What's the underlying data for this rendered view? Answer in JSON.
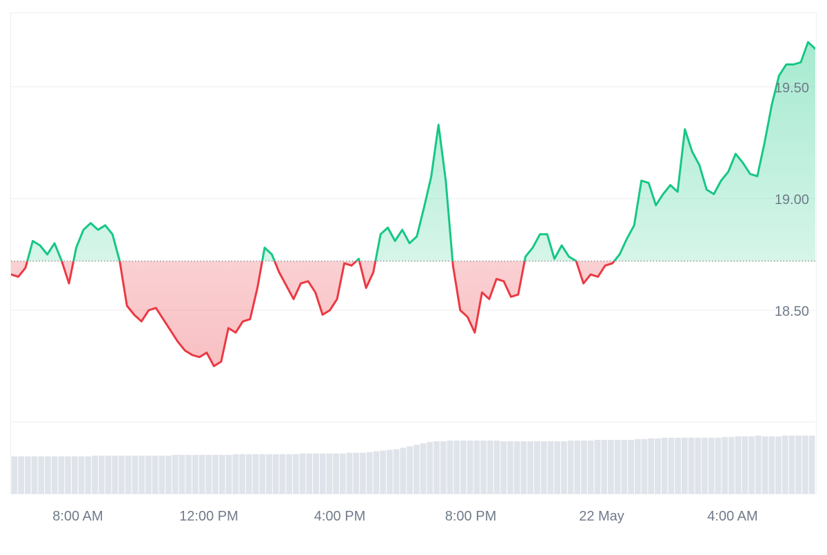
{
  "chart_data": {
    "type": "line",
    "baseline": 18.72,
    "ylim": [
      18.0,
      19.83
    ],
    "y_ticks": [
      "18.50",
      "19.00",
      "19.50"
    ],
    "x_ticks": [
      "8:00 AM",
      "12:00 PM",
      "4:00 PM",
      "8:00 PM",
      "22 May",
      "4:00 AM"
    ],
    "grid": true,
    "legend": "none",
    "colors": {
      "up_line": "#16c784",
      "down_line": "#ea3943",
      "up_fill": "#16c784",
      "down_fill": "#ea3943",
      "baseline": "#777777",
      "grid": "#eeeeee",
      "volume": "#dfe3ea",
      "tick_text": "#707a8a"
    },
    "series": [
      {
        "values": [
          18.66,
          18.65,
          18.69,
          18.81,
          18.79,
          18.75,
          18.8,
          18.72,
          18.62,
          18.78,
          18.86,
          18.89,
          18.86,
          18.88,
          18.84,
          18.72,
          18.52,
          18.48,
          18.45,
          18.5,
          18.51,
          18.46,
          18.41,
          18.36,
          18.32,
          18.3,
          18.29,
          18.31,
          18.25,
          18.27,
          18.42,
          18.4,
          18.45,
          18.46,
          18.6,
          18.78,
          18.75,
          18.67,
          18.61,
          18.55,
          18.62,
          18.63,
          18.58,
          18.48,
          18.5,
          18.55,
          18.71,
          18.7,
          18.73,
          18.6,
          18.67,
          18.84,
          18.87,
          18.81,
          18.86,
          18.8,
          18.83,
          18.96,
          19.1,
          19.33,
          19.08,
          18.7,
          18.5,
          18.47,
          18.4,
          18.58,
          18.55,
          18.64,
          18.63,
          18.56,
          18.57,
          18.74,
          18.78,
          18.84,
          18.84,
          18.73,
          18.79,
          18.74,
          18.72,
          18.62,
          18.66,
          18.65,
          18.7,
          18.71,
          18.75,
          18.82,
          18.88,
          19.08,
          19.07,
          18.97,
          19.02,
          19.06,
          19.03,
          19.31,
          19.21,
          19.15,
          19.04,
          19.02,
          19.08,
          19.12,
          19.2,
          19.16,
          19.11,
          19.1,
          19.25,
          19.42,
          19.55,
          19.6,
          19.6,
          19.61,
          19.7,
          19.67
        ]
      }
    ],
    "volume_values": [
      0.52,
      0.52,
      0.52,
      0.52,
      0.52,
      0.52,
      0.52,
      0.52,
      0.52,
      0.52,
      0.52,
      0.52,
      0.53,
      0.53,
      0.53,
      0.53,
      0.53,
      0.53,
      0.53,
      0.53,
      0.53,
      0.53,
      0.53,
      0.53,
      0.54,
      0.54,
      0.54,
      0.54,
      0.54,
      0.54,
      0.54,
      0.54,
      0.54,
      0.55,
      0.55,
      0.55,
      0.55,
      0.55,
      0.55,
      0.55,
      0.55,
      0.55,
      0.55,
      0.56,
      0.56,
      0.56,
      0.56,
      0.56,
      0.56,
      0.56,
      0.57,
      0.57,
      0.57,
      0.58,
      0.59,
      0.6,
      0.61,
      0.62,
      0.64,
      0.66,
      0.68,
      0.7,
      0.72,
      0.73,
      0.73,
      0.74,
      0.74,
      0.74,
      0.74,
      0.74,
      0.74,
      0.74,
      0.74,
      0.73,
      0.73,
      0.73,
      0.73,
      0.73,
      0.73,
      0.73,
      0.73,
      0.73,
      0.73,
      0.74,
      0.74,
      0.74,
      0.74,
      0.75,
      0.75,
      0.75,
      0.75,
      0.75,
      0.75,
      0.76,
      0.76,
      0.77,
      0.77,
      0.78,
      0.78,
      0.78,
      0.78,
      0.78,
      0.78,
      0.78,
      0.78,
      0.78,
      0.79,
      0.79,
      0.8,
      0.8,
      0.8,
      0.81,
      0.8,
      0.8,
      0.8,
      0.81,
      0.81,
      0.81,
      0.81,
      0.81
    ]
  }
}
